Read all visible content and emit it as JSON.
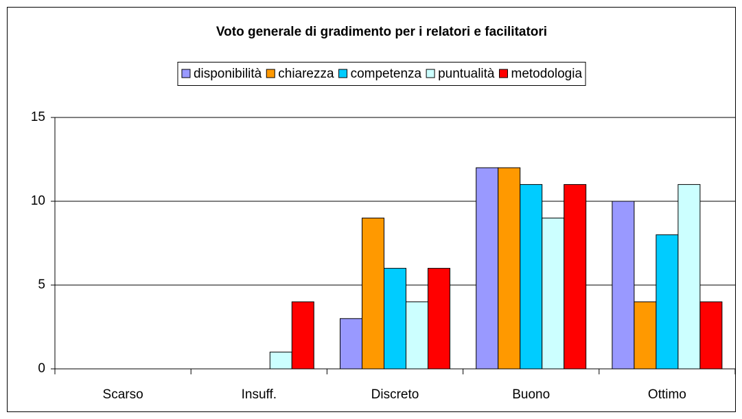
{
  "chart_data": {
    "type": "bar",
    "title": "Voto generale di gradimento per i relatori e facilitatori",
    "categories": [
      "Scarso",
      "Insuff.",
      "Discreto",
      "Buono",
      "Ottimo"
    ],
    "series": [
      {
        "name": "disponibilità",
        "color": "#9999ff",
        "values": [
          0,
          0,
          3,
          12,
          10
        ]
      },
      {
        "name": "chiarezza",
        "color": "#ff9900",
        "values": [
          0,
          0,
          9,
          12,
          4
        ]
      },
      {
        "name": "competenza",
        "color": "#00ccff",
        "values": [
          0,
          0,
          6,
          11,
          8
        ]
      },
      {
        "name": "puntualità",
        "color": "#ccffff",
        "values": [
          0,
          1,
          4,
          9,
          11
        ]
      },
      {
        "name": "metodologia",
        "color": "#ff0000",
        "values": [
          0,
          4,
          6,
          11,
          4
        ]
      }
    ],
    "ylim": [
      0,
      15
    ],
    "yticks": [
      0,
      5,
      10,
      15
    ],
    "grid": true,
    "legend": "top"
  }
}
